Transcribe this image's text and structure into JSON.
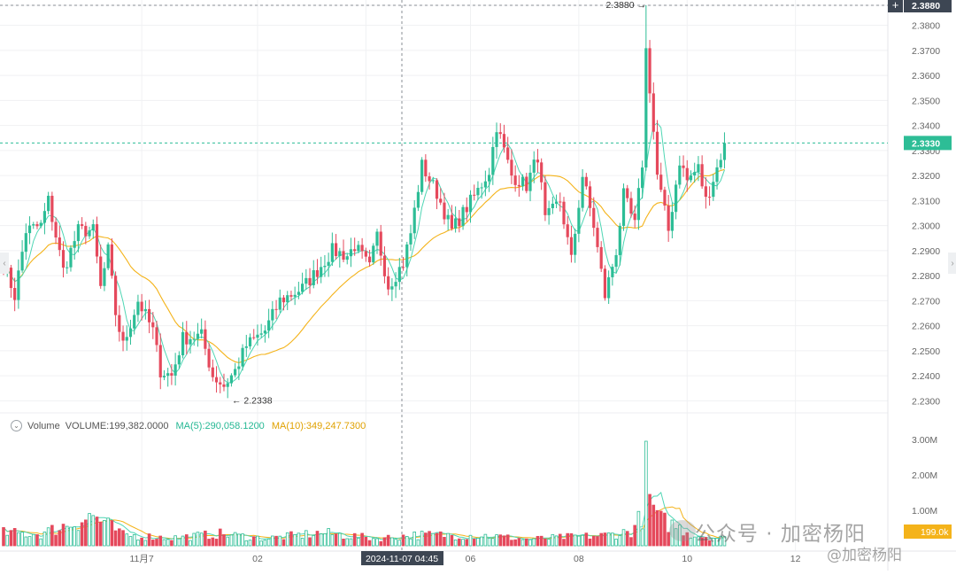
{
  "chart_data": {
    "type": "candlestick",
    "colors": {
      "up": "#2dbd96",
      "down": "#e5495c",
      "ma5": "#4fd6b4",
      "ma10": "#f4b31a"
    },
    "price_axis": {
      "ticks": [
        "2.3880",
        "2.3800",
        "2.3700",
        "2.3600",
        "2.3500",
        "2.3400",
        "2.3300",
        "2.3200",
        "2.3100",
        "2.3000",
        "2.2900",
        "2.2800",
        "2.2700",
        "2.2600",
        "2.2500",
        "2.2400",
        "2.2300"
      ],
      "range": [
        2.228,
        2.388
      ]
    },
    "volume_axis": {
      "ticks": [
        "3.00M",
        "2.00M",
        "1.00M"
      ],
      "range": [
        0,
        3000000
      ]
    },
    "x_axis": {
      "ticks": [
        "11月7",
        "02",
        "04",
        "06",
        "08",
        "10",
        "12"
      ]
    },
    "current_price": "2.3330",
    "current_volume_label": "199.0k",
    "crosshair_price": "2.3880",
    "crosshair_time": "2024-11-07 04:45",
    "annotations": {
      "high": "2.3880",
      "low": "2.2338"
    },
    "volume_legend": {
      "title": "Volume",
      "volume": "VOLUME:199,382.0000",
      "ma5": "MA(5):290,058.1200",
      "ma10": "MA(10):349,247.7300"
    },
    "waypoints": [
      [
        0,
        2.285
      ],
      [
        3,
        2.272
      ],
      [
        6,
        2.298
      ],
      [
        10,
        2.3
      ],
      [
        12,
        2.31
      ],
      [
        16,
        2.282
      ],
      [
        20,
        2.298
      ],
      [
        24,
        2.298
      ],
      [
        26,
        2.275
      ],
      [
        28,
        2.29
      ],
      [
        30,
        2.265
      ],
      [
        32,
        2.252
      ],
      [
        36,
        2.27
      ],
      [
        40,
        2.258
      ],
      [
        42,
        2.242
      ],
      [
        45,
        2.24
      ],
      [
        48,
        2.255
      ],
      [
        53,
        2.256
      ],
      [
        56,
        2.24
      ],
      [
        59,
        2.236
      ],
      [
        62,
        2.242
      ],
      [
        65,
        2.252
      ],
      [
        70,
        2.258
      ],
      [
        74,
        2.27
      ],
      [
        80,
        2.275
      ],
      [
        84,
        2.282
      ],
      [
        88,
        2.29
      ],
      [
        92,
        2.288
      ],
      [
        94,
        2.292
      ],
      [
        98,
        2.283
      ],
      [
        100,
        2.296
      ],
      [
        103,
        2.276
      ],
      [
        107,
        2.285
      ],
      [
        109,
        2.297
      ],
      [
        112,
        2.324
      ],
      [
        116,
        2.313
      ],
      [
        120,
        2.298
      ],
      [
        123,
        2.305
      ],
      [
        127,
        2.314
      ],
      [
        130,
        2.322
      ],
      [
        132,
        2.34
      ],
      [
        136,
        2.32
      ],
      [
        140,
        2.316
      ],
      [
        143,
        2.328
      ],
      [
        145,
        2.302
      ],
      [
        149,
        2.31
      ],
      [
        152,
        2.286
      ],
      [
        155,
        2.32
      ],
      [
        158,
        2.3
      ],
      [
        161,
        2.272
      ],
      [
        164,
        2.29
      ],
      [
        166,
        2.312
      ],
      [
        169,
        2.3
      ],
      [
        171,
        2.325
      ],
      [
        172,
        2.37
      ],
      [
        173,
        2.355
      ],
      [
        175,
        2.32
      ],
      [
        178,
        2.298
      ],
      [
        181,
        2.326
      ],
      [
        183,
        2.318
      ],
      [
        186,
        2.323
      ],
      [
        188,
        2.31
      ],
      [
        191,
        2.323
      ],
      [
        193,
        2.333
      ]
    ],
    "volume_waypoints": [
      [
        0,
        0.36
      ],
      [
        10,
        0.33
      ],
      [
        24,
        0.85
      ],
      [
        32,
        0.3
      ],
      [
        45,
        0.22
      ],
      [
        58,
        0.33
      ],
      [
        70,
        0.2
      ],
      [
        85,
        0.36
      ],
      [
        100,
        0.2
      ],
      [
        110,
        0.3
      ],
      [
        120,
        0.3
      ],
      [
        130,
        0.28
      ],
      [
        140,
        0.18
      ],
      [
        150,
        0.24
      ],
      [
        160,
        0.28
      ],
      [
        168,
        0.4
      ],
      [
        171,
        0.85
      ],
      [
        172,
        2.95
      ],
      [
        173,
        1.45
      ],
      [
        175,
        0.75
      ],
      [
        180,
        0.55
      ],
      [
        185,
        0.3
      ],
      [
        193,
        0.2
      ]
    ]
  }
}
